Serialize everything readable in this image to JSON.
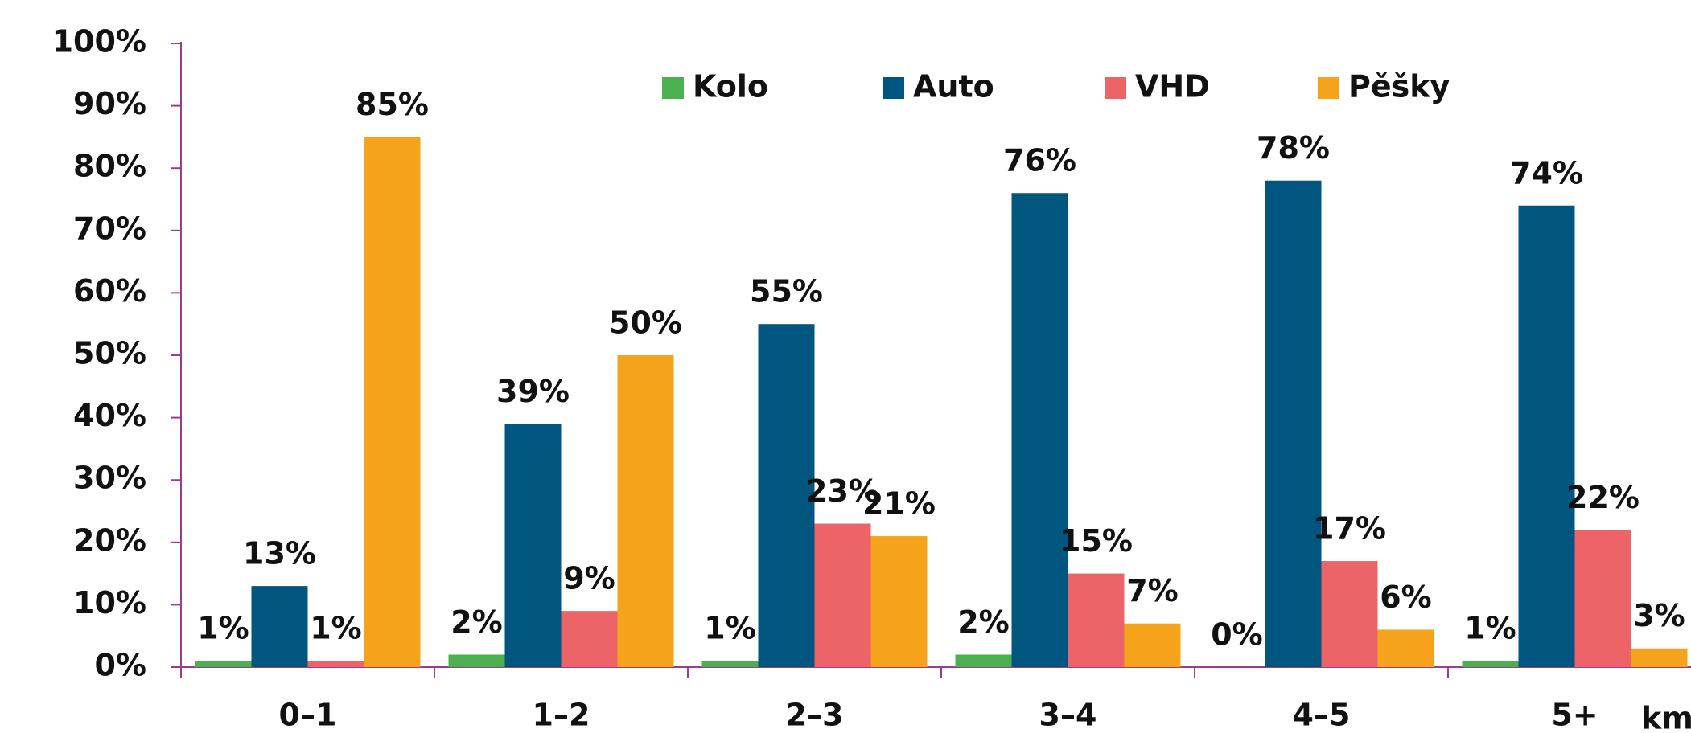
{
  "chart_data": {
    "type": "bar",
    "categories": [
      "0–1",
      "1–2",
      "2–3",
      "3–4",
      "4–5",
      "5+"
    ],
    "x_label": "km",
    "series": [
      {
        "name": "Kolo",
        "color": "#4caf50",
        "values": [
          1,
          2,
          1,
          2,
          0,
          1
        ],
        "value_labels": [
          "1%",
          "2%",
          "1%",
          "2%",
          "0%",
          "1%"
        ]
      },
      {
        "name": "Auto",
        "color": "#00567f",
        "values": [
          13,
          39,
          55,
          76,
          78,
          74
        ],
        "value_labels": [
          "13%",
          "39%",
          "55%",
          "76%",
          "78%",
          "74%"
        ]
      },
      {
        "name": "VHD",
        "color": "#ec6468",
        "values": [
          1,
          9,
          23,
          15,
          17,
          22
        ],
        "value_labels": [
          "1%",
          "9%",
          "23%",
          "15%",
          "17%",
          "22%"
        ]
      },
      {
        "name": "Pěšky",
        "color": "#f5a31a",
        "values": [
          85,
          50,
          21,
          7,
          6,
          3
        ],
        "value_labels": [
          "85%",
          "50%",
          "21%",
          "7%",
          "6%",
          "3%"
        ]
      }
    ],
    "ylim": [
      0,
      100
    ],
    "yticks": [
      {
        "value": 0,
        "label": "0%"
      },
      {
        "value": 10,
        "label": "10%"
      },
      {
        "value": 20,
        "label": "20%"
      },
      {
        "value": 30,
        "label": "30%"
      },
      {
        "value": 40,
        "label": "40%"
      },
      {
        "value": 50,
        "label": "50%"
      },
      {
        "value": 60,
        "label": "60%"
      },
      {
        "value": 70,
        "label": "70%"
      },
      {
        "value": 80,
        "label": "80%"
      },
      {
        "value": 90,
        "label": "90%"
      },
      {
        "value": 100,
        "label": "100%"
      }
    ],
    "legend": "top"
  }
}
